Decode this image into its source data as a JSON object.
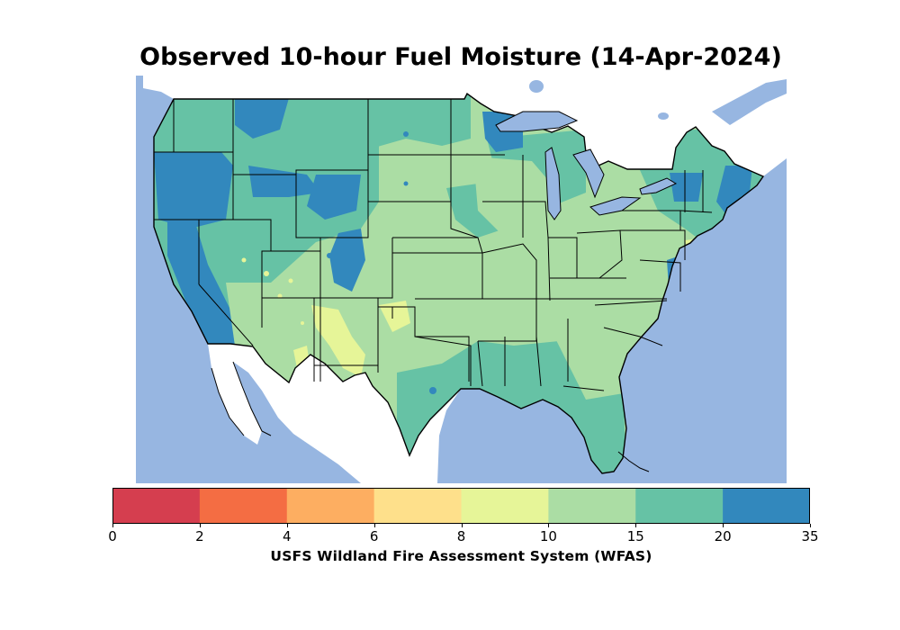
{
  "title": "Observed 10-hour Fuel Moisture (14-Apr-2024)",
  "map": {
    "region": "Contiguous United States",
    "water_color": "#97b6e1",
    "land_outside_color": "#ffffff",
    "boundary_color": "#000000"
  },
  "colorbar": {
    "label": "USFS Wildland Fire Assessment System (WFAS)",
    "boundaries": [
      "0",
      "2",
      "4",
      "6",
      "8",
      "10",
      "15",
      "20",
      "35"
    ],
    "colors": [
      "#d53e4f",
      "#f46d43",
      "#fdae61",
      "#fee08b",
      "#e6f598",
      "#abdda4",
      "#66c2a5",
      "#3288bd"
    ]
  }
}
